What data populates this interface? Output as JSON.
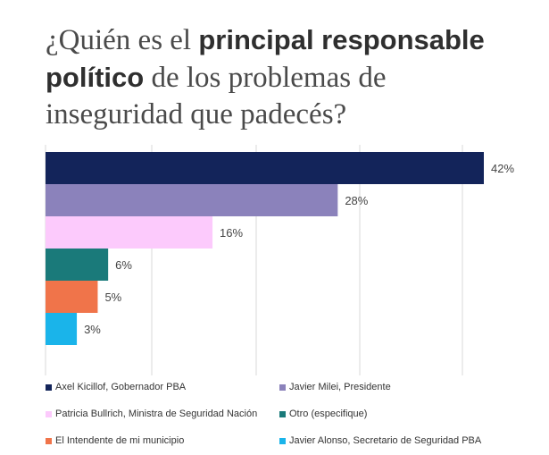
{
  "title": {
    "part1": "¿Quién es el ",
    "bold": "principal responsable político",
    "part2": " de los problemas de inseguridad que padecés?"
  },
  "chart_data": {
    "type": "bar",
    "orientation": "horizontal",
    "categories": [
      "Axel Kicillof, Gobernador PBA",
      "Javier Milei, Presidente",
      "Patricia Bullrich, Ministra de Seguridad Nación",
      "Otro (especifique)",
      "El Intendente de mi municipio",
      "Javier Alonso, Secretario de Seguridad PBA"
    ],
    "values": [
      42,
      28,
      16,
      6,
      5,
      3
    ],
    "labels": [
      "42%",
      "28%",
      "16%",
      "6%",
      "5%",
      "3%"
    ],
    "colors": [
      "#13245a",
      "#8b82bb",
      "#fccafc",
      "#1a7a7a",
      "#f0744a",
      "#1ab4ea"
    ],
    "xlim": [
      0,
      42
    ],
    "grid": true,
    "legend_position": "bottom"
  }
}
